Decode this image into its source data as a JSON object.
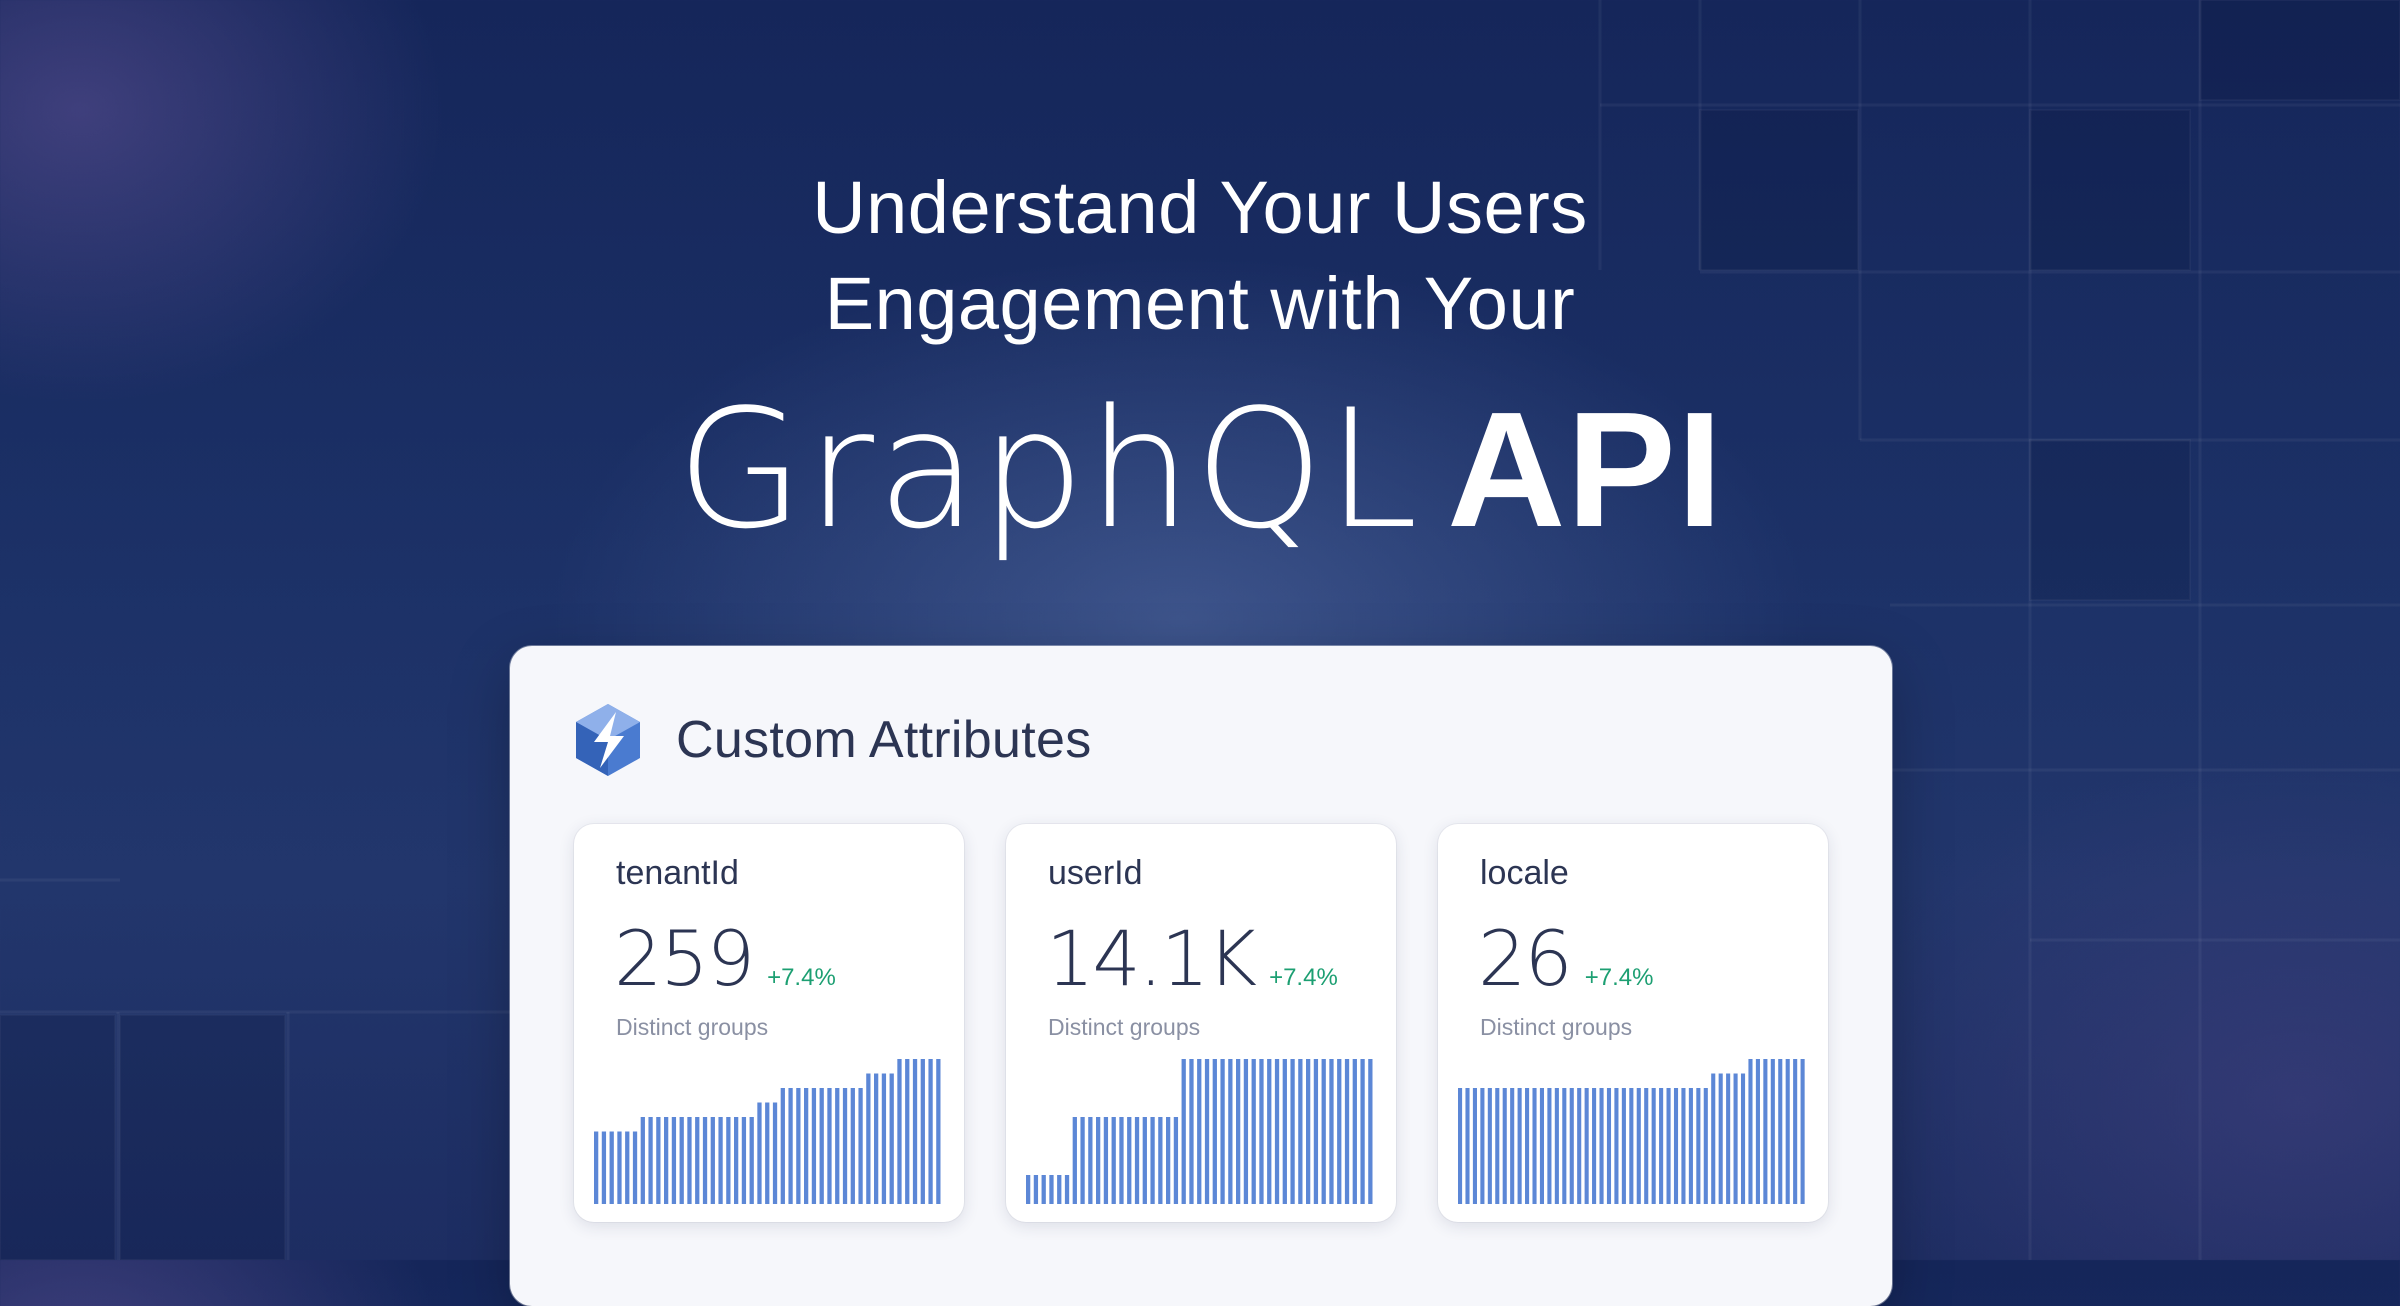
{
  "headline": {
    "line1": "Understand Your Users",
    "line2": "Engagement with Your",
    "big_light": "GraphQL",
    "big_bold": "API"
  },
  "panel": {
    "title": "Custom Attributes",
    "logo_icon": "stellate-logo-icon"
  },
  "colors": {
    "bar": "#5c87d6",
    "delta": "#1c9f72",
    "text": "#2c3553",
    "muted": "#8a90a3"
  },
  "cards": [
    {
      "label": "tenantId",
      "value": "259",
      "delta": "+7.4%",
      "sub": "Distinct groups",
      "bars": [
        5,
        5,
        5,
        5,
        5,
        5,
        6,
        6,
        6,
        6,
        6,
        6,
        6,
        6,
        6,
        6,
        6,
        6,
        6,
        6,
        6,
        7,
        7,
        7,
        8,
        8,
        8,
        8,
        8,
        8,
        8,
        8,
        8,
        8,
        8,
        9,
        9,
        9,
        9,
        10,
        10,
        10,
        10,
        10,
        10
      ]
    },
    {
      "label": "userId",
      "value": "14.1K",
      "delta": "+7.4%",
      "sub": "Distinct groups",
      "bars": [
        2,
        2,
        2,
        2,
        2,
        2,
        6,
        6,
        6,
        6,
        6,
        6,
        6,
        6,
        6,
        6,
        6,
        6,
        6,
        6,
        10,
        10,
        10,
        10,
        10,
        10,
        10,
        10,
        10,
        10,
        10,
        10,
        10,
        10,
        10,
        10,
        10,
        10,
        10,
        10,
        10,
        10,
        10,
        10,
        10
      ]
    },
    {
      "label": "locale",
      "value": "26",
      "delta": "+7.4%",
      "sub": "Distinct groups",
      "bars": [
        8,
        8,
        8,
        8,
        8,
        8,
        8,
        8,
        8,
        8,
        8,
        8,
        8,
        8,
        8,
        8,
        8,
        8,
        8,
        8,
        8,
        8,
        8,
        8,
        8,
        8,
        8,
        8,
        8,
        8,
        8,
        8,
        8,
        8,
        9,
        9,
        9,
        9,
        9,
        10,
        10,
        10,
        10,
        10,
        10,
        10,
        10
      ]
    }
  ]
}
